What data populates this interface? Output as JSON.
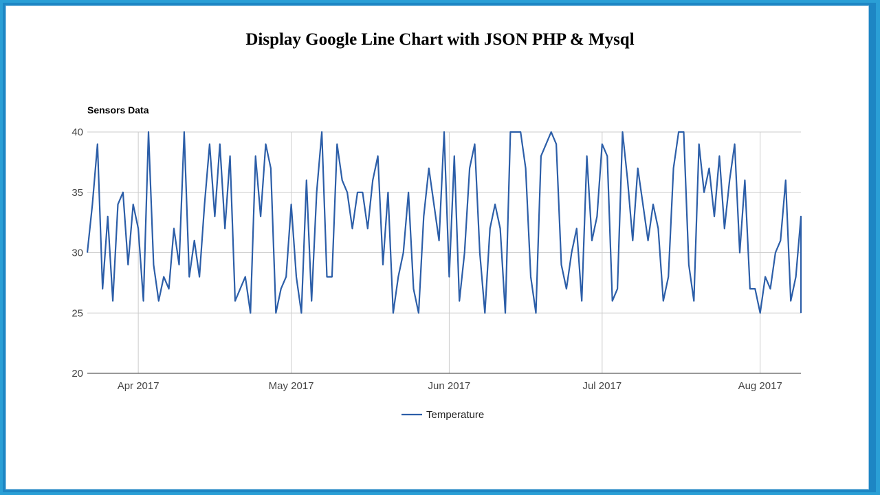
{
  "page": {
    "title": "Display Google Line Chart with JSON PHP & Mysql"
  },
  "colors": {
    "series": "#2c5ea8",
    "grid": "#cccccc",
    "frame": "#2a9fd6"
  },
  "chart_data": {
    "type": "line",
    "title": "Sensors Data",
    "x_type": "date",
    "xlim": [
      "2017-03-22",
      "2017-08-09"
    ],
    "ylim": [
      20,
      40
    ],
    "y_ticks": [
      20,
      25,
      30,
      35,
      40
    ],
    "x_ticks": [
      {
        "date": "2017-04-01",
        "label": "Apr 2017"
      },
      {
        "date": "2017-05-01",
        "label": "May 2017"
      },
      {
        "date": "2017-06-01",
        "label": "Jun 2017"
      },
      {
        "date": "2017-07-01",
        "label": "Jul 2017"
      },
      {
        "date": "2017-08-01",
        "label": "Aug 2017"
      }
    ],
    "grid": true,
    "legend": "bottom",
    "series": [
      {
        "name": "Temperature",
        "start_date": "2017-03-22",
        "x": [
          "2017-03-22",
          "2017-03-23",
          "2017-03-24",
          "2017-03-25",
          "2017-03-26",
          "2017-03-27",
          "2017-03-28",
          "2017-03-29",
          "2017-03-30",
          "2017-03-31",
          "2017-04-01",
          "2017-04-02",
          "2017-04-03",
          "2017-04-04",
          "2017-04-05",
          "2017-04-06",
          "2017-04-07",
          "2017-04-08",
          "2017-04-09",
          "2017-04-10",
          "2017-04-11",
          "2017-04-12",
          "2017-04-13",
          "2017-04-14",
          "2017-04-15",
          "2017-04-16",
          "2017-04-17",
          "2017-04-18",
          "2017-04-19",
          "2017-04-20",
          "2017-04-21",
          "2017-04-22",
          "2017-04-23",
          "2017-04-24",
          "2017-04-25",
          "2017-04-26",
          "2017-04-27",
          "2017-04-28",
          "2017-04-29",
          "2017-04-30",
          "2017-05-01",
          "2017-05-02",
          "2017-05-03",
          "2017-05-04",
          "2017-05-05",
          "2017-05-06",
          "2017-05-07",
          "2017-05-08",
          "2017-05-09",
          "2017-05-10",
          "2017-05-11",
          "2017-05-12",
          "2017-05-13",
          "2017-05-14",
          "2017-05-15",
          "2017-05-16",
          "2017-05-17",
          "2017-05-18",
          "2017-05-19",
          "2017-05-20",
          "2017-05-21",
          "2017-05-22",
          "2017-05-23",
          "2017-05-24",
          "2017-05-25",
          "2017-05-26",
          "2017-05-27",
          "2017-05-28",
          "2017-05-29",
          "2017-05-30",
          "2017-05-31",
          "2017-06-01",
          "2017-06-02",
          "2017-06-03",
          "2017-06-04",
          "2017-06-05",
          "2017-06-06",
          "2017-06-07",
          "2017-06-08",
          "2017-06-09",
          "2017-06-10",
          "2017-06-11",
          "2017-06-12",
          "2017-06-13",
          "2017-06-14",
          "2017-06-15",
          "2017-06-16",
          "2017-06-17",
          "2017-06-18",
          "2017-06-19",
          "2017-06-20",
          "2017-06-21",
          "2017-06-22",
          "2017-06-23",
          "2017-06-24",
          "2017-06-25",
          "2017-06-26",
          "2017-06-27",
          "2017-06-28",
          "2017-06-29",
          "2017-06-30",
          "2017-07-01",
          "2017-07-02",
          "2017-07-03",
          "2017-07-04",
          "2017-07-05",
          "2017-07-06",
          "2017-07-07",
          "2017-07-08",
          "2017-07-09",
          "2017-07-10",
          "2017-07-11",
          "2017-07-12",
          "2017-07-13",
          "2017-07-14",
          "2017-07-15",
          "2017-07-16",
          "2017-07-17",
          "2017-07-18",
          "2017-07-19",
          "2017-07-20",
          "2017-07-21",
          "2017-07-22",
          "2017-07-23",
          "2017-07-24",
          "2017-07-25",
          "2017-07-26",
          "2017-07-27",
          "2017-07-28",
          "2017-07-29",
          "2017-07-30",
          "2017-07-31",
          "2017-08-01",
          "2017-08-02",
          "2017-08-03",
          "2017-08-04",
          "2017-08-05",
          "2017-08-06",
          "2017-08-07",
          "2017-08-08",
          "2017-08-09",
          "2017-08-09"
        ],
        "values": [
          30,
          34,
          39,
          27,
          33,
          26,
          34,
          35,
          29,
          34,
          32,
          26,
          40,
          29,
          26,
          28,
          27,
          32,
          29,
          40,
          28,
          31,
          28,
          34,
          39,
          33,
          39,
          32,
          38,
          26,
          27,
          28,
          25,
          38,
          33,
          39,
          37,
          25,
          27,
          28,
          34,
          28,
          25,
          36,
          26,
          35,
          40,
          28,
          28,
          39,
          36,
          35,
          32,
          35,
          35,
          32,
          36,
          38,
          29,
          35,
          25,
          28,
          30,
          35,
          27,
          25,
          33,
          37,
          34,
          31,
          40,
          28,
          38,
          26,
          30,
          37,
          39,
          30,
          25,
          32,
          34,
          32,
          25,
          40,
          40,
          40,
          37,
          28,
          25,
          38,
          39,
          40,
          39,
          29,
          27,
          30,
          32,
          26,
          38,
          31,
          33,
          39,
          38,
          26,
          27,
          40,
          36,
          31,
          37,
          34,
          31,
          34,
          32,
          26,
          28,
          37,
          40,
          40,
          29,
          26,
          39,
          35,
          37,
          33,
          38,
          32,
          36,
          39,
          30,
          36,
          27,
          27,
          25,
          28,
          27,
          30,
          31,
          36,
          26,
          28,
          33,
          25
        ]
      }
    ]
  }
}
